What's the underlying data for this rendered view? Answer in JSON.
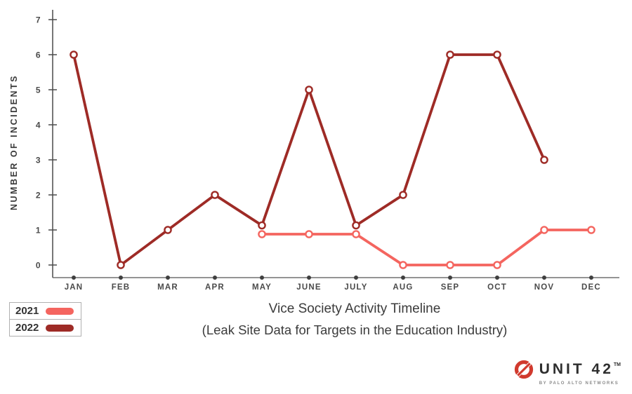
{
  "chart_data": {
    "type": "line",
    "title": "Vice Society Activity Timeline",
    "subtitle": "(Leak Site Data for Targets in the Education Industry)",
    "xlabel": "",
    "ylabel": "NUMBER OF INCIDENTS",
    "categories": [
      "JAN",
      "FEB",
      "MAR",
      "APR",
      "MAY",
      "JUNE",
      "JULY",
      "AUG",
      "SEP",
      "OCT",
      "NOV",
      "DEC"
    ],
    "ylim": [
      0,
      7
    ],
    "yticks": [
      0,
      1,
      2,
      3,
      4,
      5,
      6,
      7
    ],
    "grid": false,
    "legend_position": "bottom-left",
    "series": [
      {
        "name": "2021",
        "color": "#f4655f",
        "values": [
          null,
          null,
          null,
          null,
          1,
          1,
          1,
          0,
          0,
          0,
          1,
          1
        ],
        "plot_offsets": [
          0,
          0,
          0,
          0,
          -0.12,
          -0.12,
          -0.12,
          0,
          0,
          0,
          0,
          0
        ]
      },
      {
        "name": "2022",
        "color": "#9e2b26",
        "values": [
          6,
          0,
          1,
          2,
          1,
          5,
          1,
          2,
          6,
          6,
          3,
          null
        ],
        "plot_offsets": [
          0,
          0,
          0,
          0,
          0.13,
          0,
          0.13,
          0,
          0,
          0,
          0,
          0
        ]
      }
    ],
    "axis_text_color": "#4a4a4a",
    "axis_line_color": "#555555"
  },
  "legend": {
    "items": [
      {
        "label": "2021",
        "color": "#f4655f"
      },
      {
        "label": "2022",
        "color": "#9e2b26"
      }
    ]
  },
  "title": {
    "line1": "Vice Society Activity Timeline",
    "line2": "(Leak Site Data for Targets in the Education Industry)"
  },
  "branding": {
    "name": "UNIT 42",
    "tm": "TM",
    "tagline": "BY PALO ALTO NETWORKS",
    "logo_color": "#d13a2e"
  }
}
